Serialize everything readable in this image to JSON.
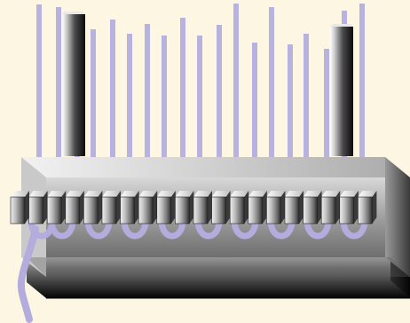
{
  "diagram": {
    "colors": {
      "background": "#fdf6e3",
      "warp_thread": "#b8b2e0",
      "warp_loop": "#b3acdc",
      "block_light": "#e6e6e6",
      "block_mid": "#9a9a9a",
      "block_dark": "#2a2a2a",
      "bar_light": "#ffffff",
      "bar_dark": "#0a0a0a"
    },
    "thread_count": 19,
    "shaft_count": 2,
    "block_count": 20,
    "loop_count": 10
  }
}
